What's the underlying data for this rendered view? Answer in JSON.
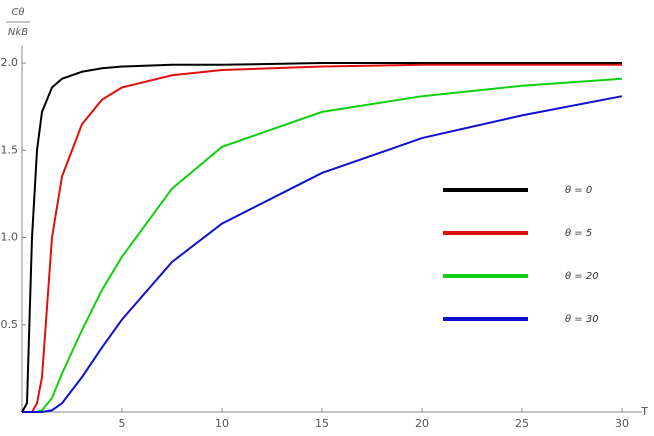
{
  "chart_data": {
    "type": "line",
    "y_label_numerator": "Cθ",
    "y_label_denominator": "NkB",
    "x_label": "T",
    "x": [
      0,
      0.25,
      0.5,
      0.75,
      1,
      1.5,
      2,
      3,
      4,
      5,
      7.5,
      10,
      15,
      20,
      25,
      30
    ],
    "series": [
      {
        "name": "θ = 0",
        "color": "#000000",
        "values": [
          0,
          0.05,
          1.0,
          1.5,
          1.72,
          1.86,
          1.91,
          1.95,
          1.97,
          1.98,
          1.99,
          1.99,
          2.0,
          2.0,
          2.0,
          2.0
        ]
      },
      {
        "name": "θ = 5",
        "color": "#e01010",
        "values": [
          0,
          0,
          0,
          0.05,
          0.2,
          1.0,
          1.35,
          1.65,
          1.79,
          1.86,
          1.93,
          1.96,
          1.98,
          1.99,
          1.99,
          1.99
        ]
      },
      {
        "name": "θ = 20",
        "color": "#10d010",
        "values": [
          0,
          0,
          0,
          0,
          0.01,
          0.08,
          0.22,
          0.47,
          0.7,
          0.89,
          1.28,
          1.52,
          1.72,
          1.81,
          1.87,
          1.91
        ]
      },
      {
        "name": "θ = 30",
        "color": "#1010d0",
        "values": [
          0,
          0,
          0,
          0,
          0,
          0.01,
          0.05,
          0.2,
          0.37,
          0.53,
          0.86,
          1.08,
          1.37,
          1.57,
          1.7,
          1.81
        ]
      }
    ],
    "xlim": [
      0,
      31
    ],
    "ylim": [
      0,
      2.1
    ],
    "xticks": [
      5,
      10,
      15,
      20,
      25,
      30
    ],
    "yticks": [
      0.5,
      {
        "value": 1.0,
        "label": "1.0"
      },
      1.5,
      {
        "value": 2.0,
        "label": "2.0"
      }
    ],
    "grid": false,
    "legend": "right"
  }
}
